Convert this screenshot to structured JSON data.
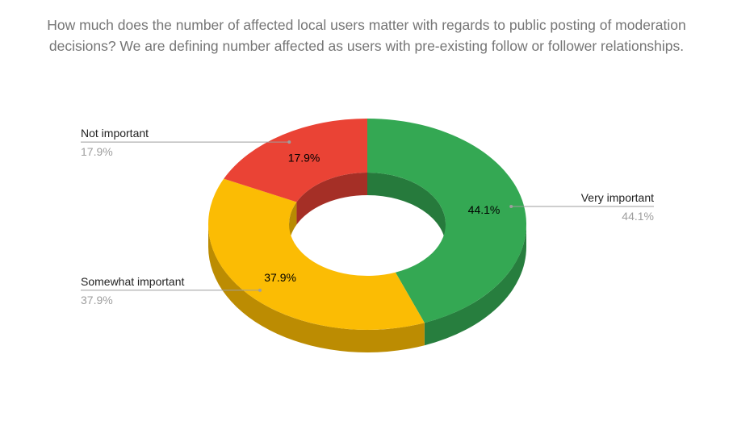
{
  "chart_data": {
    "type": "pie",
    "subtype": "donut-3d",
    "title": "How much does the number of affected local users matter with regards to public posting of moderation decisions? We are defining number affected as users with pre-existing follow or follower relationships.",
    "slices": [
      {
        "label": "Very important",
        "value": 44.1,
        "display": "44.1%",
        "color": "#34a853",
        "side": "#277e3e",
        "inner": "#267a3c"
      },
      {
        "label": "Somewhat important",
        "value": 37.9,
        "display": "37.9%",
        "color": "#fbbc04",
        "side": "#bc8c02",
        "inner": "#b88a03"
      },
      {
        "label": "Not important",
        "value": 17.9,
        "display": "17.9%",
        "color": "#ea4335",
        "side": "#af3228",
        "inner": "#a52f26"
      }
    ],
    "legend": "labels-outside"
  }
}
